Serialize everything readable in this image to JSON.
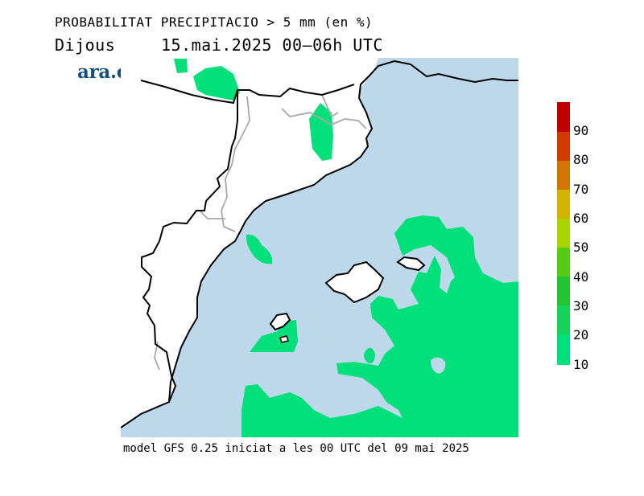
{
  "header": {
    "title": "PROBABILITAT PRECIPITACIO > 5 mm (en %)",
    "day": "Dijous",
    "datetime": "15.mai.2025  00–06h  UTC",
    "brand": "ara.cat"
  },
  "footer": {
    "text": "model GFS 0.25 iniciat a les 00 UTC del 09 mai 2025"
  },
  "legend": {
    "labels": [
      "90",
      "80",
      "70",
      "60",
      "50",
      "40",
      "30",
      "20",
      "10"
    ],
    "colors": [
      "#c00000",
      "#cf3a00",
      "#d27400",
      "#d2b400",
      "#a8d500",
      "#55cd14",
      "#23c632",
      "#16d45a",
      "#00e07a"
    ]
  },
  "colors": {
    "sea": "#bcd8ea",
    "land": "#ffffff",
    "prob_10_20": "#00e07a",
    "prob_20_30": "#16d45a",
    "prob_30_40": "#23c632",
    "brand": "#15507f"
  }
}
